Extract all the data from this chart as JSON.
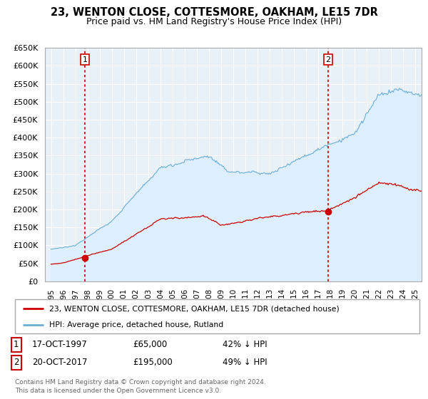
{
  "title": "23, WENTON CLOSE, COTTESMORE, OAKHAM, LE15 7DR",
  "subtitle": "Price paid vs. HM Land Registry's House Price Index (HPI)",
  "legend_line1": "23, WENTON CLOSE, COTTESMORE, OAKHAM, LE15 7DR (detached house)",
  "legend_line2": "HPI: Average price, detached house, Rutland",
  "table_row1": [
    "1",
    "17-OCT-1997",
    "£65,000",
    "42% ↓ HPI"
  ],
  "table_row2": [
    "2",
    "20-OCT-2017",
    "£195,000",
    "49% ↓ HPI"
  ],
  "footnote": "Contains HM Land Registry data © Crown copyright and database right 2024.\nThis data is licensed under the Open Government Licence v3.0.",
  "sale1_year": 1997.8,
  "sale1_price": 65000,
  "sale2_year": 2017.8,
  "sale2_price": 195000,
  "hpi_color": "#6baed6",
  "hpi_fill_color": "#ddeeff",
  "price_color": "#cc0000",
  "dashed_color": "#cc0000",
  "background_color": "#ffffff",
  "grid_color": "#cccccc",
  "ylim": [
    0,
    650000
  ],
  "xlim_start": 1994.5,
  "xlim_end": 2025.5
}
